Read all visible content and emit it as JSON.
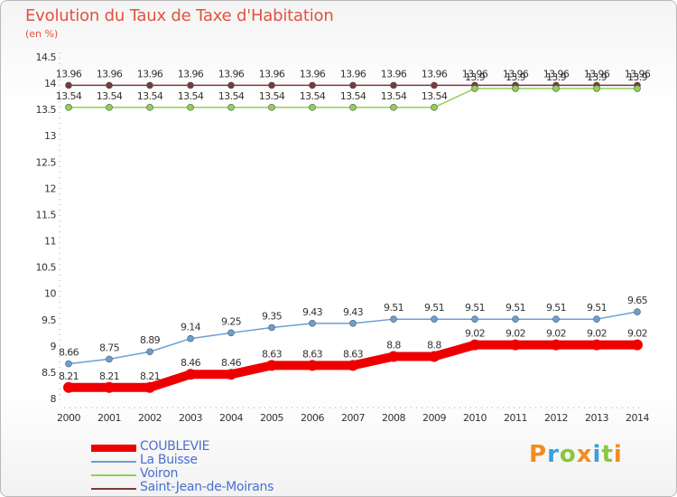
{
  "chart_data": {
    "type": "line",
    "title": "Evolution du Taux de Taxe d'Habitation",
    "ylabel": "(en %)",
    "x": [
      "2000",
      "2001",
      "2002",
      "2003",
      "2004",
      "2005",
      "2006",
      "2007",
      "2008",
      "2009",
      "2010",
      "2011",
      "2012",
      "2013",
      "2014"
    ],
    "ylim": [
      8,
      14.5
    ],
    "yticks": [
      "8",
      "8.5",
      "9",
      "9.5",
      "10",
      "10.5",
      "11",
      "11.5",
      "12",
      "12.5",
      "13",
      "13.5",
      "14",
      "14.5"
    ],
    "series": [
      {
        "name": "COUBLEVIE",
        "color": "#ee0000",
        "values": [
          8.21,
          8.21,
          8.21,
          8.46,
          8.46,
          8.63,
          8.63,
          8.63,
          8.8,
          8.8,
          9.02,
          9.02,
          9.02,
          9.02,
          9.02
        ],
        "labels": [
          "8.21",
          "8.21",
          "8.21",
          "8.46",
          "8.46",
          "8.63",
          "8.63",
          "8.63",
          "8.8",
          "8.8",
          "9.02",
          "9.02",
          "9.02",
          "9.02",
          "9.02"
        ]
      },
      {
        "name": "La Buisse",
        "color": "#6a9fd4",
        "values": [
          8.66,
          8.75,
          8.89,
          9.14,
          9.25,
          9.35,
          9.43,
          9.43,
          9.51,
          9.51,
          9.51,
          9.51,
          9.51,
          9.51,
          9.65
        ],
        "labels": [
          "8.66",
          "8.75",
          "8.89",
          "9.14",
          "9.25",
          "9.35",
          "9.43",
          "9.43",
          "9.51",
          "9.51",
          "9.51",
          "9.51",
          "9.51",
          "9.51",
          "9.65"
        ]
      },
      {
        "name": "Voiron",
        "color": "#8fd154",
        "values": [
          13.54,
          13.54,
          13.54,
          13.54,
          13.54,
          13.54,
          13.54,
          13.54,
          13.54,
          13.54,
          13.9,
          13.9,
          13.9,
          13.9,
          13.9
        ],
        "labels": [
          "13.54",
          "13.54",
          "13.54",
          "13.54",
          "13.54",
          "13.54",
          "13.54",
          "13.54",
          "13.54",
          "13.54",
          "13.9",
          "13.9",
          "13.9",
          "13.9",
          "13.9"
        ]
      },
      {
        "name": "Saint-Jean-de-Moirans",
        "color": "#7a3a3a",
        "values": [
          13.96,
          13.96,
          13.96,
          13.96,
          13.96,
          13.96,
          13.96,
          13.96,
          13.96,
          13.96,
          13.96,
          13.96,
          13.96,
          13.96,
          13.96
        ],
        "labels": [
          "13.96",
          "13.96",
          "13.96",
          "13.96",
          "13.96",
          "13.96",
          "13.96",
          "13.96",
          "13.96",
          "13.96",
          "13.96",
          "13.96",
          "13.96",
          "13.96",
          "13.96"
        ]
      }
    ],
    "grid": false,
    "legend_position": "bottom-left"
  },
  "logo": {
    "letters": [
      "P",
      "r",
      "o",
      "x",
      "i",
      "t",
      "i"
    ],
    "colors": [
      "#f28c1e",
      "#3aa0dd",
      "#8cc63f",
      "#f28c1e",
      "#3aa0dd",
      "#8cc63f",
      "#f28c1e"
    ]
  }
}
